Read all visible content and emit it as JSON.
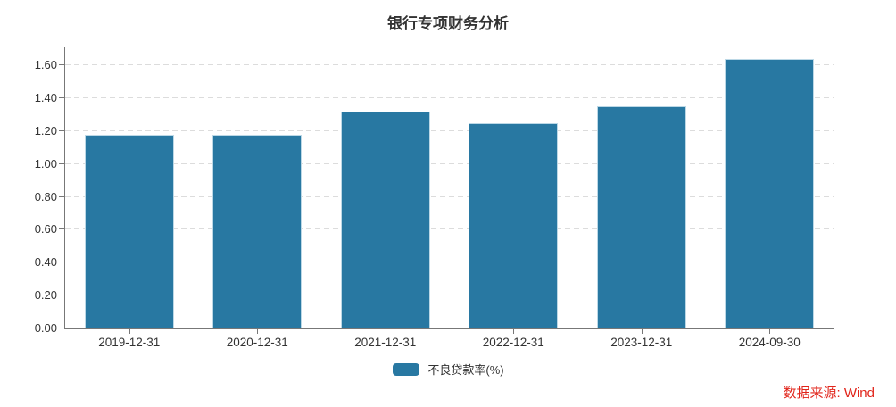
{
  "header": {
    "title": "银行专项财务分析"
  },
  "chart_data": {
    "type": "bar",
    "title": "银行专项财务分析",
    "categories": [
      "2019-12-31",
      "2020-12-31",
      "2021-12-31",
      "2022-12-31",
      "2023-12-31",
      "2024-09-30"
    ],
    "series": [
      {
        "name": "不良贷款率(%)",
        "values": [
          1.18,
          1.18,
          1.32,
          1.25,
          1.35,
          1.64
        ],
        "color": "#2878a2"
      }
    ],
    "xlabel": "",
    "ylabel": "",
    "ylim": [
      0,
      1.71
    ],
    "yticks": [
      0.0,
      0.2,
      0.4,
      0.6,
      0.8,
      1.0,
      1.2,
      1.4,
      1.6
    ],
    "ytick_format_decimals": 2,
    "grid": "horizontal-dashed",
    "legend_position": "bottom-center"
  },
  "colors": {
    "bar": "#2878a2",
    "grid": "#dcdcdc",
    "axis": "#777777",
    "text": "#333333",
    "source_text": "#e1251b",
    "background": "#ffffff"
  },
  "footer": {
    "source_text": "数据来源: Wind"
  }
}
